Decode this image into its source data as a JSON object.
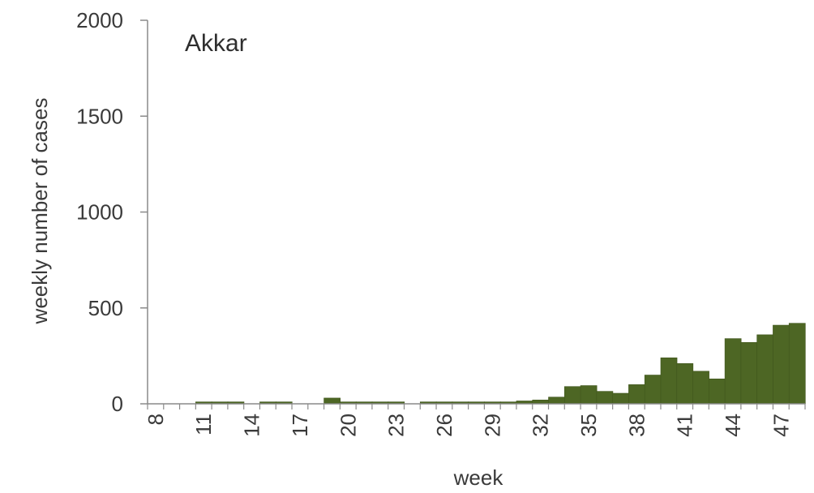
{
  "chart_data": {
    "type": "bar",
    "title": "Akkar",
    "xlabel": "week",
    "ylabel": "weekly number of cases",
    "ylim": [
      0,
      2000
    ],
    "yticks": [
      0,
      500,
      1000,
      1500,
      2000
    ],
    "x": [
      8,
      9,
      10,
      11,
      12,
      13,
      14,
      15,
      16,
      17,
      18,
      19,
      20,
      21,
      22,
      23,
      24,
      25,
      26,
      27,
      28,
      29,
      30,
      31,
      32,
      33,
      34,
      35,
      36,
      37,
      38,
      39,
      40,
      41,
      42,
      43,
      44,
      45,
      46,
      47,
      48
    ],
    "xtick_labels": [
      8,
      11,
      14,
      17,
      20,
      23,
      26,
      29,
      32,
      35,
      38,
      41,
      44,
      47
    ],
    "values": [
      0,
      0,
      0,
      10,
      10,
      10,
      0,
      10,
      10,
      0,
      0,
      30,
      10,
      10,
      10,
      10,
      0,
      10,
      10,
      10,
      10,
      10,
      10,
      15,
      20,
      35,
      90,
      95,
      65,
      55,
      100,
      150,
      240,
      210,
      170,
      130,
      340,
      320,
      360,
      410,
      420
    ],
    "bar_color": "#4d6624",
    "grid": false
  }
}
